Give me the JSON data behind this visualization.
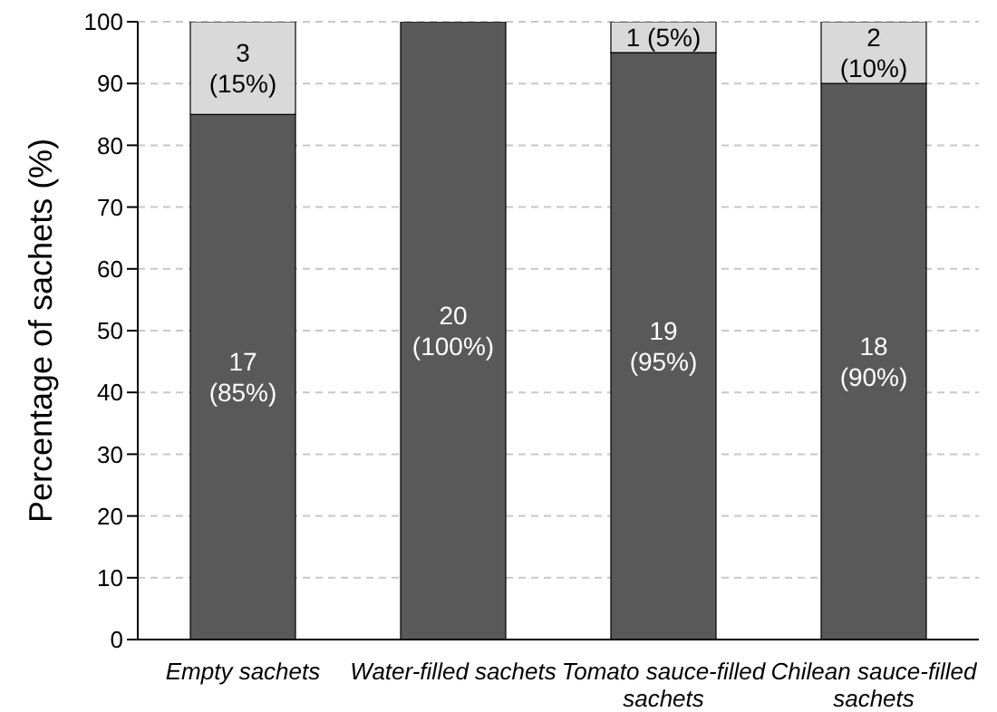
{
  "chart_data": {
    "type": "bar",
    "stacked": true,
    "ylabel": "Percentage of sachets (%)",
    "categories": [
      "Empty sachets",
      "Water-filled sachets",
      "Tomato sauce-filled sachets",
      "Chilean sauce-filled sachets"
    ],
    "series": [
      {
        "color": "#595959",
        "values": [
          85,
          100,
          95,
          90
        ],
        "value_labels": [
          "17\n(85%)",
          "20\n(100%)",
          "19\n(95%)",
          "18\n(90%)"
        ]
      },
      {
        "color": "#d9d9d9",
        "values": [
          15,
          0,
          5,
          10
        ],
        "value_labels": [
          "3\n(15%)",
          null,
          "1 (5%)",
          "2\n(10%)"
        ]
      }
    ],
    "ylim": [
      0,
      100
    ],
    "yticks": [
      0,
      10,
      20,
      30,
      40,
      50,
      60,
      70,
      80,
      90,
      100
    ],
    "grid": "y",
    "legend": false
  }
}
